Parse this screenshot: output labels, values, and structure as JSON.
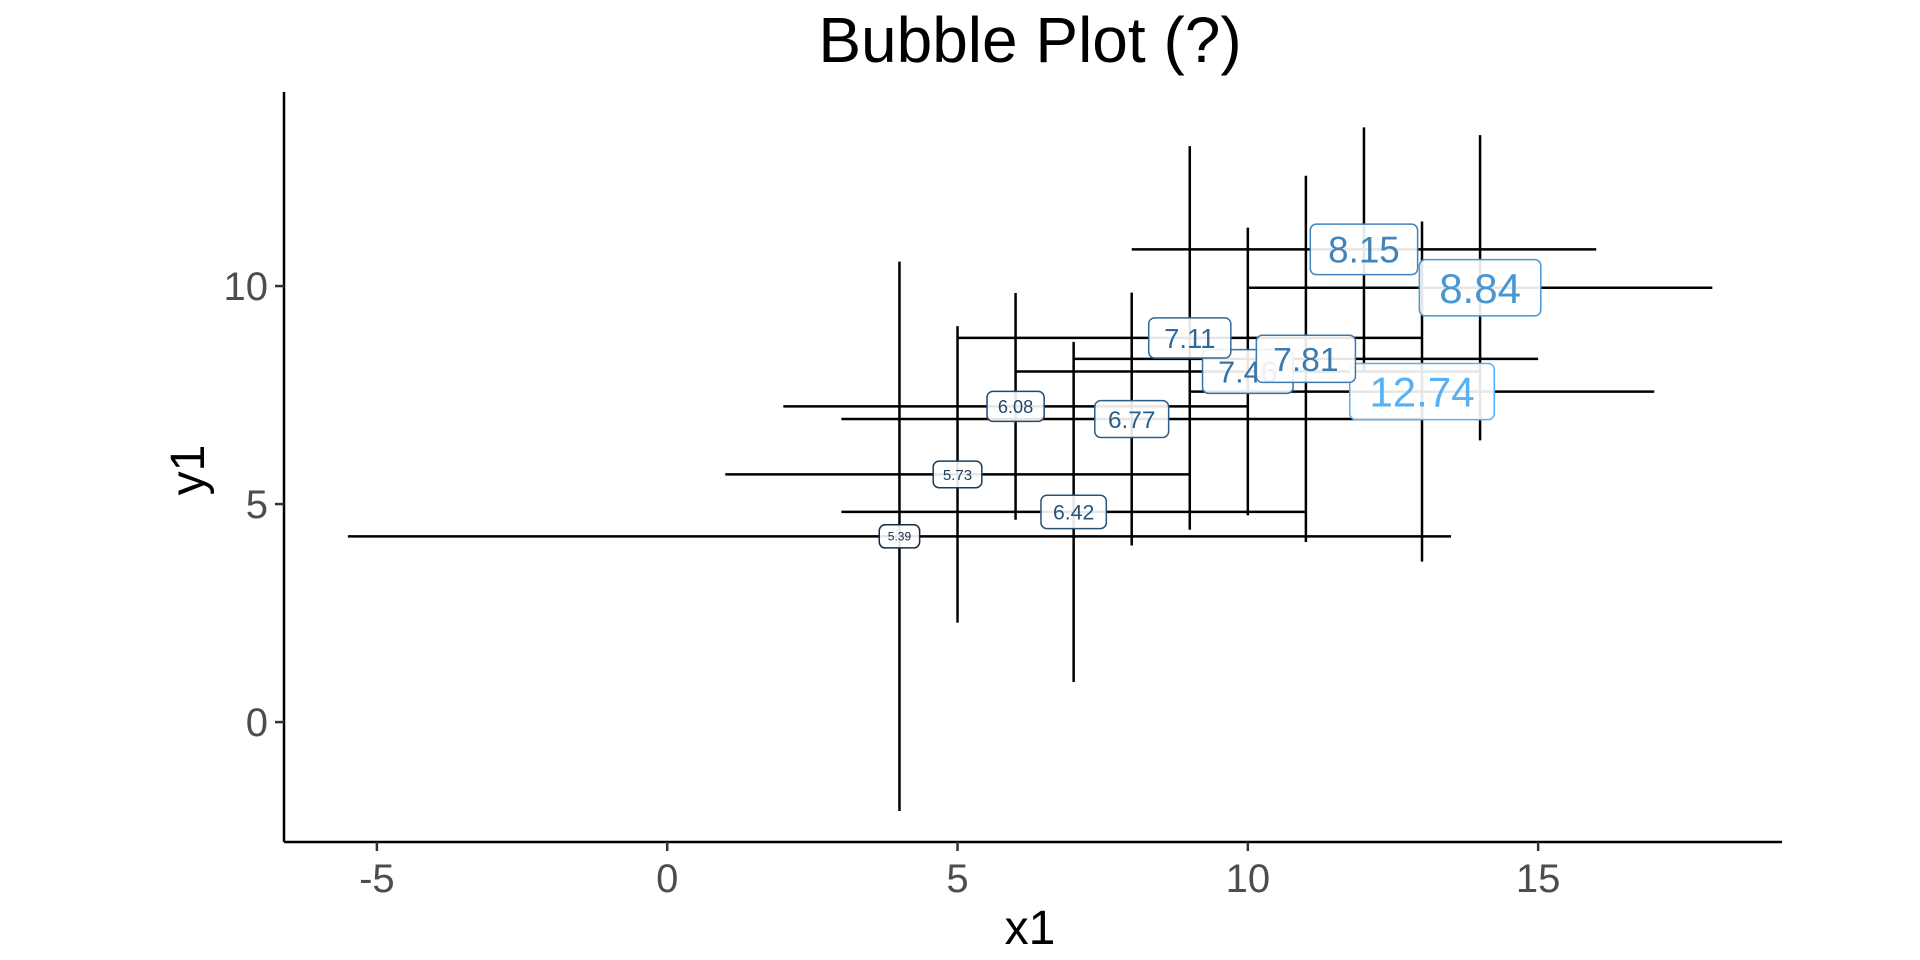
{
  "chart_data": {
    "type": "scatter",
    "title": "Bubble Plot (?)",
    "xlabel": "x1",
    "ylabel": "y1",
    "xlim": [
      -6.6,
      19.2
    ],
    "ylim": [
      -2.75,
      14.45
    ],
    "x_ticks": [
      -5,
      0,
      5,
      10,
      15
    ],
    "y_ticks": [
      0,
      5,
      10
    ],
    "grid": false,
    "legend": "none",
    "label_color_low": "#132b43",
    "label_color_high": "#56b1f7",
    "points": [
      {
        "x": 10,
        "y": 8.04,
        "label": "7.46",
        "x_err": 4,
        "y_err": 3.3
      },
      {
        "x": 8,
        "y": 6.95,
        "label": "6.77",
        "x_err": 5,
        "y_err": 2.9
      },
      {
        "x": 13,
        "y": 7.58,
        "label": "12.74",
        "x_err": 4,
        "y_err": 3.9
      },
      {
        "x": 9,
        "y": 8.81,
        "label": "7.11",
        "x_err": 4,
        "y_err": 4.4
      },
      {
        "x": 11,
        "y": 8.33,
        "label": "7.81",
        "x_err": 4,
        "y_err": 4.2
      },
      {
        "x": 14,
        "y": 9.96,
        "label": "8.84",
        "x_err": 4,
        "y_err": 3.5
      },
      {
        "x": 6,
        "y": 7.24,
        "label": "6.08",
        "x_err": 4,
        "y_err": 2.6
      },
      {
        "x": 4,
        "y": 4.26,
        "label": "5.39",
        "x_err": 9.5,
        "y_err": 6.3
      },
      {
        "x": 12,
        "y": 10.84,
        "label": "8.15",
        "x_err": 4,
        "y_err": 2.8
      },
      {
        "x": 7,
        "y": 4.82,
        "label": "6.42",
        "x_err": 4,
        "y_err": 3.9
      },
      {
        "x": 5,
        "y": 5.68,
        "label": "5.73",
        "x_err": 4,
        "y_err": 3.4
      }
    ]
  }
}
